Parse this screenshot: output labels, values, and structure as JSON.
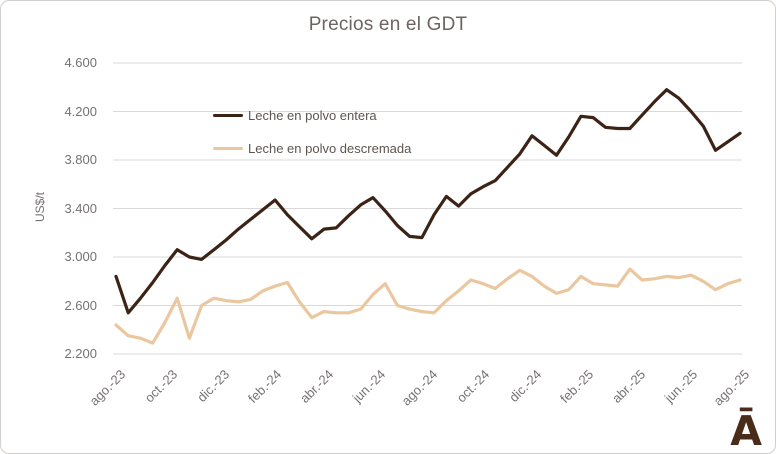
{
  "branding": {
    "logo_glyph": "Ā"
  },
  "colors": {
    "grid": "#D9D9D9",
    "axis_text": "#767171",
    "title_text": "#6B6462",
    "legend_text": "#5D5550",
    "border": "#D2D0CE",
    "logo": "#4A2C1A",
    "series_entera": "#3B2316",
    "series_descremada": "#EBC79F"
  },
  "chart_data": {
    "type": "line",
    "title": "Precios en el GDT",
    "xlabel": "",
    "ylabel": "US$/t",
    "ylim": [
      2200,
      4600
    ],
    "ytick_step": 400,
    "grid": "horizontal",
    "legend_position": "inside-top-left",
    "ytick_values": [
      4600,
      4200,
      3800,
      3400,
      3000,
      2600,
      2200
    ],
    "ytick_labels": [
      "4.600",
      "4.200",
      "3.800",
      "3.400",
      "3.000",
      "2.600",
      "2.200"
    ],
    "xtick_labels": [
      "ago.-23",
      "oct.-23",
      "dic.-23",
      "feb.-24",
      "abr.-24",
      "jun.-24",
      "ago.-24",
      "oct.-24",
      "dic.-24",
      "feb.-25",
      "abr.-25",
      "jun.-25",
      "ago.-25"
    ],
    "series": [
      {
        "name": "Leche en polvo entera",
        "color": "#3B2316",
        "values": [
          2840,
          2540,
          2660,
          2790,
          2930,
          3060,
          3000,
          2980,
          3060,
          3140,
          3230,
          3310,
          3390,
          3470,
          3350,
          3250,
          3150,
          3230,
          3240,
          3340,
          3430,
          3490,
          3380,
          3260,
          3170,
          3160,
          3350,
          3500,
          3420,
          3520,
          3580,
          3630,
          3740,
          3850,
          4000,
          3920,
          3840,
          3990,
          4160,
          4150,
          4070,
          4060,
          4060,
          4170,
          4280,
          4380,
          4310,
          4200,
          4080,
          3880,
          3950,
          4020
        ]
      },
      {
        "name": "Leche en polvo descremada",
        "color": "#EBC79F",
        "values": [
          2440,
          2350,
          2330,
          2290,
          2460,
          2660,
          2330,
          2600,
          2660,
          2640,
          2630,
          2650,
          2720,
          2760,
          2790,
          2630,
          2500,
          2550,
          2540,
          2540,
          2570,
          2690,
          2780,
          2600,
          2570,
          2550,
          2540,
          2640,
          2720,
          2810,
          2780,
          2740,
          2820,
          2890,
          2840,
          2760,
          2700,
          2730,
          2840,
          2780,
          2770,
          2760,
          2900,
          2810,
          2820,
          2840,
          2830,
          2850,
          2800,
          2730,
          2780,
          2810
        ]
      }
    ]
  }
}
